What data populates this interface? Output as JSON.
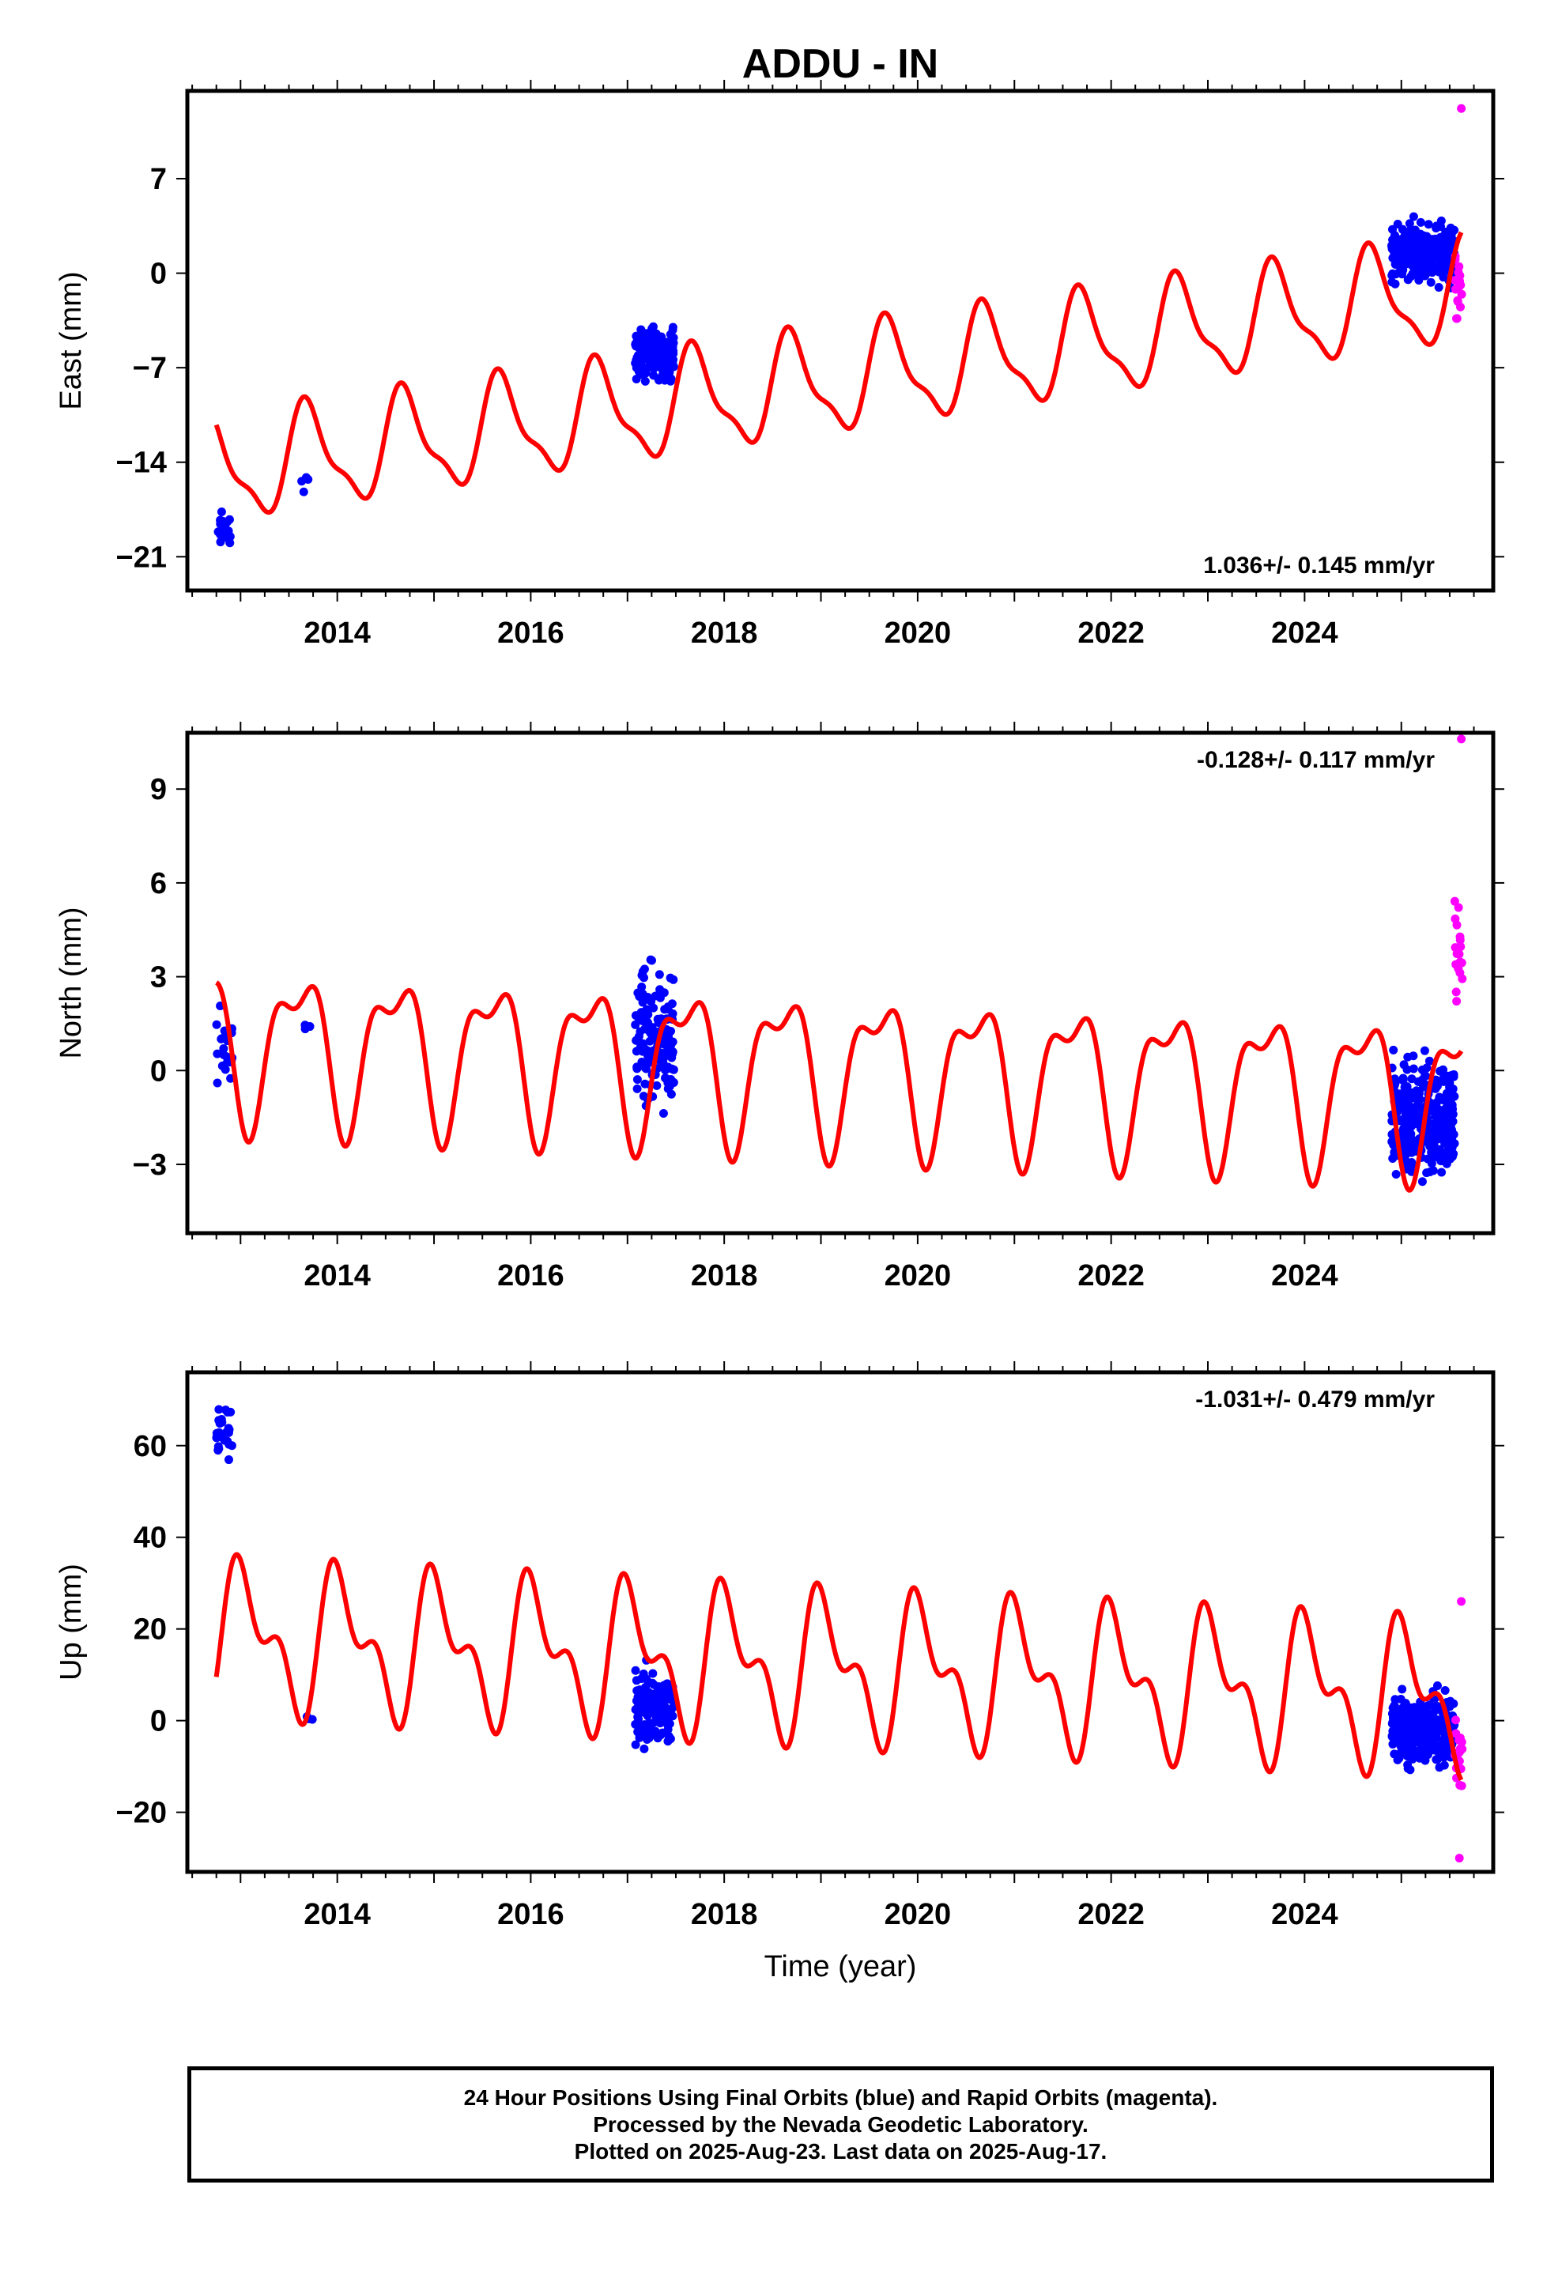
{
  "title": "ADDU - IN",
  "x_axis": {
    "label": "Time (year)",
    "tick_labels": [
      "2014",
      "2016",
      "2018",
      "2020",
      "2022",
      "2024"
    ]
  },
  "footer": {
    "line1": "24 Hour Positions Using Final Orbits (blue) and Rapid Orbits (magenta).",
    "line2": "Processed by the Nevada Geodetic Laboratory.",
    "line3": "Plotted on 2025-Aug-23. Last data on 2025-Aug-17."
  },
  "colors": {
    "final_orbits": "#0000ff",
    "rapid_orbits": "#ff00ff",
    "model_fit": "#ff0000",
    "frame": "#000000"
  },
  "chart_data": [
    {
      "type": "scatter",
      "ylabel": "East (mm)",
      "rate_label": "1.036+/- 0.145 mm/yr",
      "rate_position": "bottom-right",
      "xlim": [
        2012.45,
        2025.95
      ],
      "ylim": [
        -23.5,
        13.5
      ],
      "yticks": [
        -21,
        -14,
        -7,
        0,
        7
      ],
      "ytick_labels": [
        "−21",
        "−14",
        "−7",
        "0",
        "7"
      ],
      "model": {
        "offset_2013": -14.4,
        "rate": 1.036,
        "annual_amp": 3.6,
        "annual_phase": 0.45,
        "semiannual_amp": 1.2,
        "semiannual_phase": 0.0
      },
      "clusters_final": [
        {
          "start": 2012.75,
          "end": 2012.92,
          "center": -19.0,
          "spread": 2.0,
          "count": 25
        },
        {
          "start": 2013.6,
          "end": 2013.75,
          "center": -15.5,
          "spread": 1.5,
          "count": 4
        },
        {
          "start": 2017.08,
          "end": 2017.48,
          "center": -6.0,
          "spread": 3.0,
          "count": 160
        },
        {
          "start": 2024.9,
          "end": 2025.55,
          "center": 1.5,
          "spread": 3.5,
          "count": 300
        }
      ],
      "clusters_rapid": [
        {
          "start": 2025.55,
          "end": 2025.63,
          "center": -1.5,
          "spread": 4.5,
          "count": 18
        }
      ],
      "rapid_outliers": [
        [
          2025.62,
          12.2
        ]
      ]
    },
    {
      "type": "scatter",
      "ylabel": "North (mm)",
      "rate_label": "-0.128+/- 0.117 mm/yr",
      "rate_position": "top-right",
      "xlim": [
        2012.45,
        2025.95
      ],
      "ylim": [
        -5.2,
        10.8
      ],
      "yticks": [
        -3,
        0,
        3,
        6,
        9
      ],
      "ytick_labels": [
        "−3",
        "0",
        "3",
        "6",
        "9"
      ],
      "model": {
        "offset_2013": 0.9,
        "rate": -0.128,
        "annual_amp": 2.2,
        "annual_phase": 0.35,
        "semiannual_amp": 1.0,
        "semiannual_phase": 0.2
      },
      "clusters_final": [
        {
          "start": 2012.75,
          "end": 2012.92,
          "center": 0.5,
          "spread": 2.2,
          "count": 25
        },
        {
          "start": 2013.65,
          "end": 2013.75,
          "center": 1.5,
          "spread": 1.2,
          "count": 3
        },
        {
          "start": 2017.08,
          "end": 2017.48,
          "center": 1.0,
          "spread": 3.5,
          "count": 160
        },
        {
          "start": 2024.9,
          "end": 2025.55,
          "center": -1.5,
          "spread": 3.0,
          "count": 300
        }
      ],
      "clusters_rapid": [
        {
          "start": 2025.55,
          "end": 2025.63,
          "center": 3.8,
          "spread": 3.5,
          "count": 18
        }
      ],
      "rapid_outliers": [
        [
          2025.62,
          10.6
        ]
      ]
    },
    {
      "type": "scatter",
      "ylabel": "Up (mm)",
      "rate_label": "-1.031+/- 0.479 mm/yr",
      "rate_position": "top-right",
      "xlim": [
        2012.45,
        2025.95
      ],
      "ylim": [
        -33,
        76
      ],
      "yticks": [
        -20,
        0,
        20,
        40,
        60
      ],
      "ytick_labels": [
        "−20",
        "0",
        "20",
        "40",
        "60"
      ],
      "model": {
        "offset_2013": 18.0,
        "rate": -1.031,
        "annual_amp": 13.0,
        "annual_phase": 0.8,
        "semiannual_amp": 8.0,
        "semiannual_phase": 0.3
      },
      "clusters_final": [
        {
          "start": 2012.75,
          "end": 2012.92,
          "center": 63.0,
          "spread": 10.0,
          "count": 25
        },
        {
          "start": 2013.65,
          "end": 2013.75,
          "center": 0.0,
          "spread": 6.0,
          "count": 3
        },
        {
          "start": 2017.08,
          "end": 2017.48,
          "center": 3.0,
          "spread": 12.0,
          "count": 160
        },
        {
          "start": 2024.9,
          "end": 2025.55,
          "center": -2.0,
          "spread": 12.0,
          "count": 300
        }
      ],
      "clusters_rapid": [
        {
          "start": 2025.55,
          "end": 2025.63,
          "center": -8.0,
          "spread": 16.0,
          "count": 18
        }
      ],
      "rapid_outliers": [
        [
          2025.62,
          26.0
        ],
        [
          2025.6,
          -30.0
        ]
      ]
    }
  ]
}
